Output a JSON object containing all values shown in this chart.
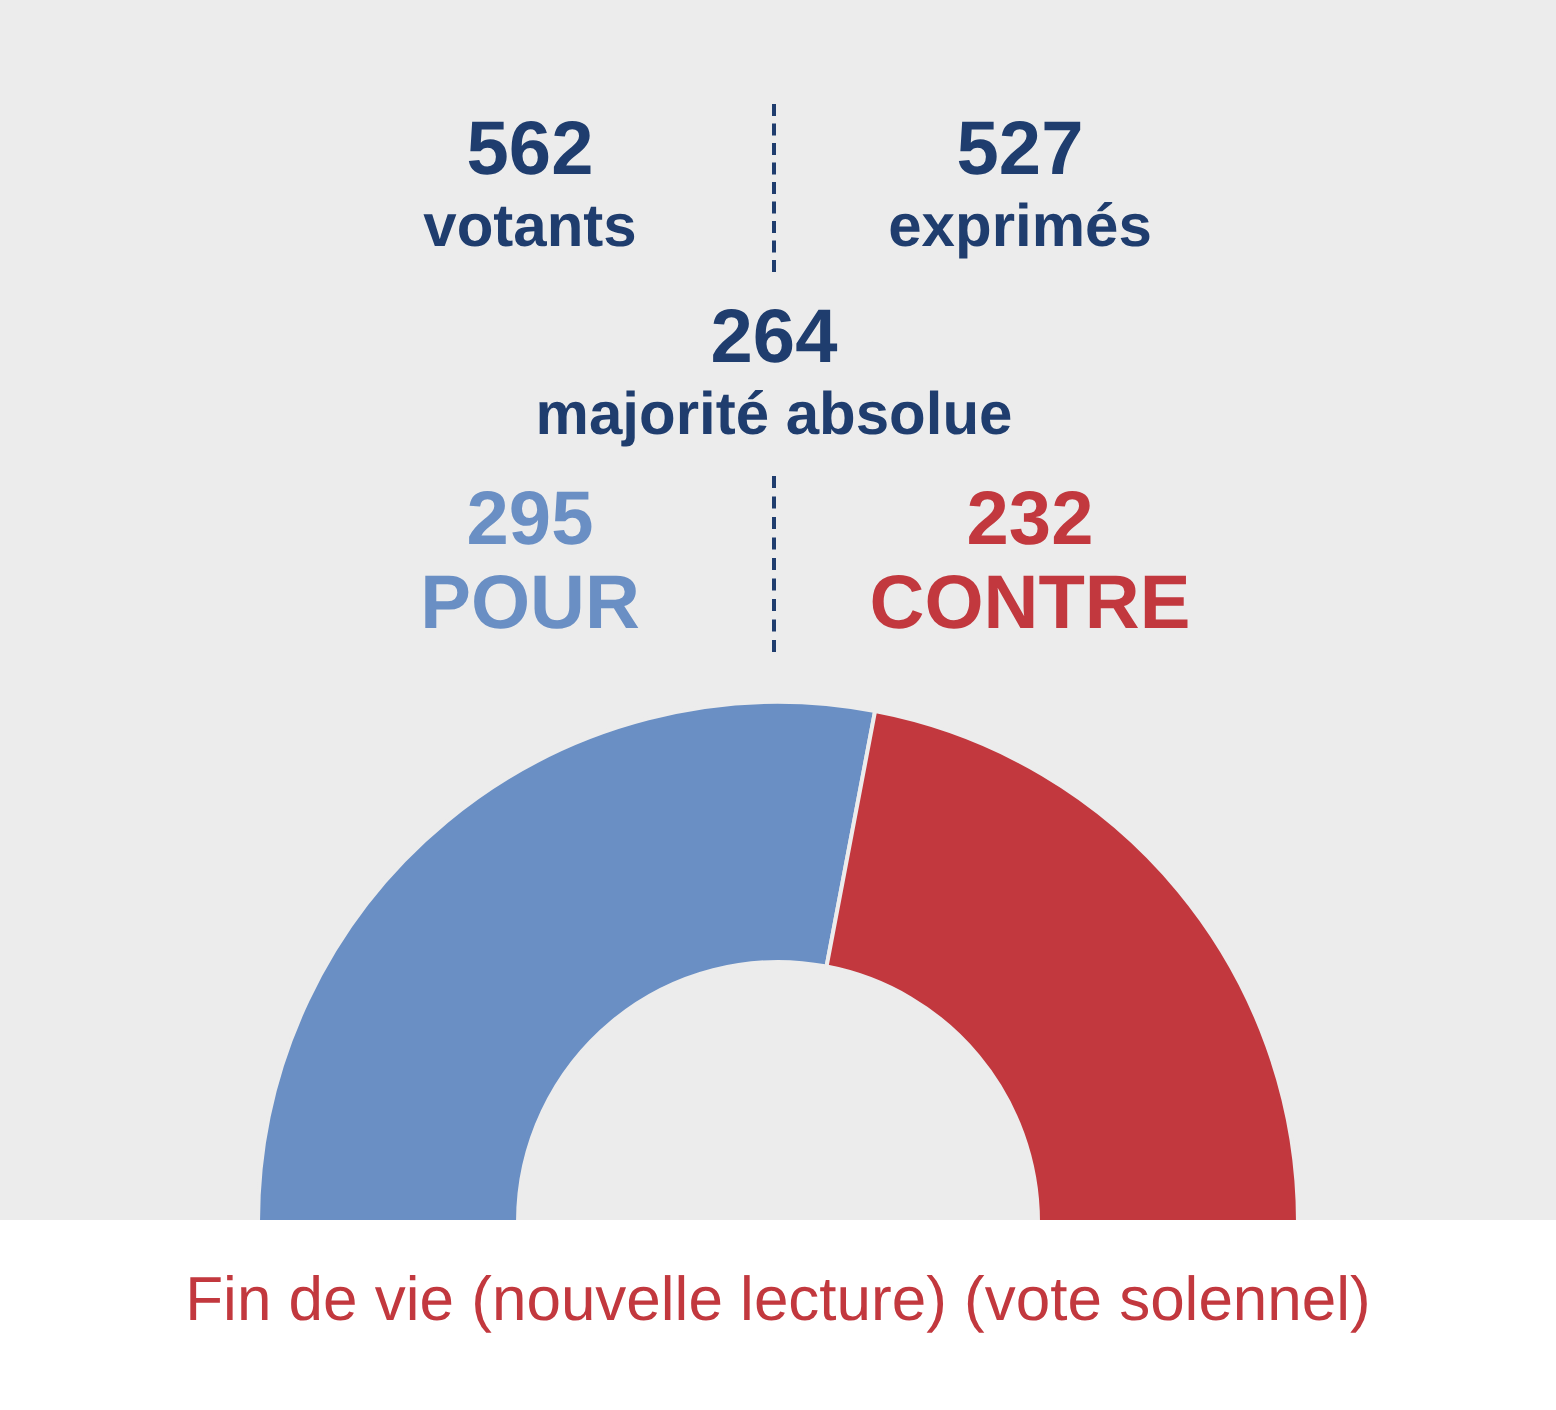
{
  "chart_data": {
    "type": "donut",
    "data_labels": true,
    "title": "Fin de vie (nouvelle lecture) (vote solennel)",
    "categories": [
      "POUR",
      "CONTRE"
    ],
    "values": [
      295,
      232
    ],
    "colors": [
      "#6a8fc4",
      "#c2383e"
    ],
    "annotations": [
      "562\nvotants",
      "527\nexprimés",
      "264\nmajorité absolue"
    ]
  }
}
